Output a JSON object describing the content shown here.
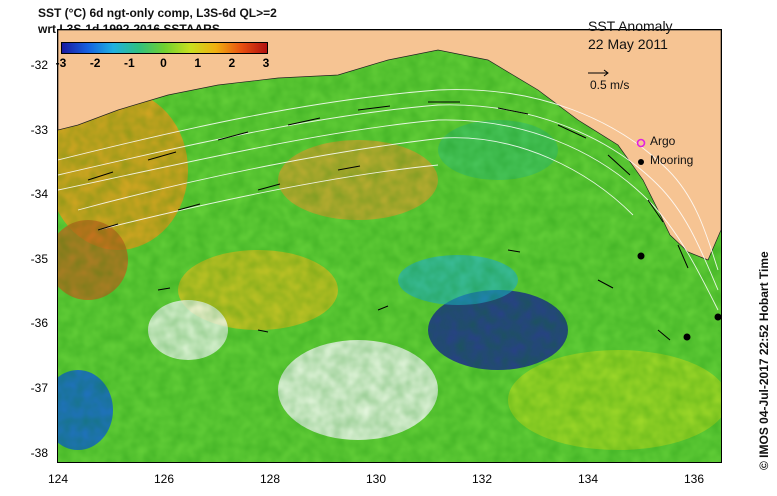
{
  "header": {
    "line1": "SST (°C) 6d ngt-only comp, L3S-6d QL>=2",
    "line2": "wrt L3S-1d 1992-2016 SSTAARS"
  },
  "colorbar": {
    "ticks": [
      "-3",
      "-2",
      "-1",
      "0",
      "1",
      "2",
      "3"
    ],
    "colors": [
      "#1a1aa0",
      "#1560e0",
      "#20b0e0",
      "#30c080",
      "#70d030",
      "#c8e020",
      "#f0b010",
      "#e85010",
      "#b01010"
    ]
  },
  "map": {
    "title": "SST Anomaly",
    "date": "22 May 2011",
    "scale_label": "0.5 m/s",
    "land_color": "#f6c493",
    "lat_ticks": [
      "-32",
      "-33",
      "-34",
      "-35",
      "-36",
      "-37",
      "-38"
    ],
    "lon_ticks": [
      "124",
      "126",
      "128",
      "130",
      "132",
      "134",
      "136"
    ]
  },
  "legend": {
    "argo_label": "Argo",
    "mooring_label": "Mooring",
    "argo_color": "#e020e0"
  },
  "credit": "© IMOS 04-Jul-2017 22:52 Hobart Time"
}
